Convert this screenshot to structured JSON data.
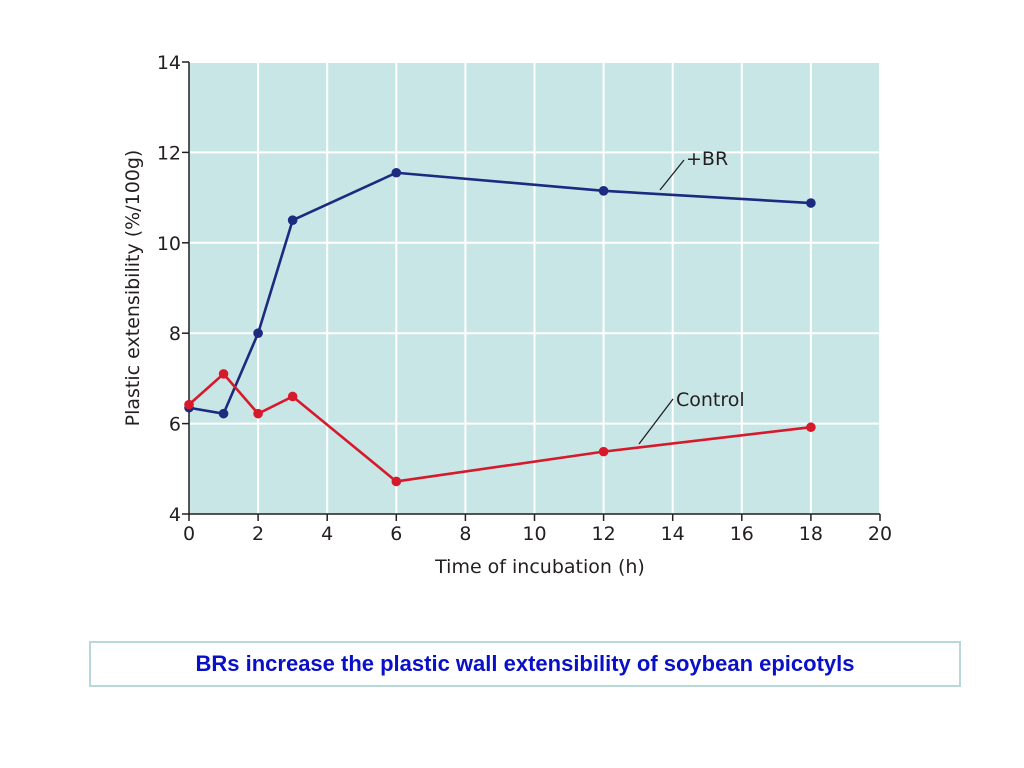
{
  "chart_data": {
    "type": "line",
    "xlabel": "Time of incubation (h)",
    "ylabel": "Plastic extensibility (%/100g)",
    "xlim": [
      0,
      20
    ],
    "ylim": [
      4,
      14
    ],
    "xticks": [
      0,
      2,
      4,
      6,
      8,
      10,
      12,
      14,
      16,
      18,
      20
    ],
    "yticks": [
      4,
      6,
      8,
      10,
      12,
      14
    ],
    "grid": true,
    "background": "#c8e6e6",
    "series": [
      {
        "name": "+BR",
        "color": "#1c2a80",
        "x": [
          0,
          1,
          2,
          3,
          6,
          12,
          18
        ],
        "y": [
          6.35,
          6.22,
          8.0,
          10.5,
          11.55,
          11.15,
          10.88
        ]
      },
      {
        "name": "Control",
        "color": "#d7192c",
        "x": [
          0,
          1,
          2,
          3,
          6,
          12,
          18
        ],
        "y": [
          6.42,
          7.1,
          6.22,
          6.6,
          4.72,
          5.38,
          5.92
        ]
      }
    ]
  },
  "caption": "BRs increase the plastic wall extensibility of soybean epicotyls"
}
